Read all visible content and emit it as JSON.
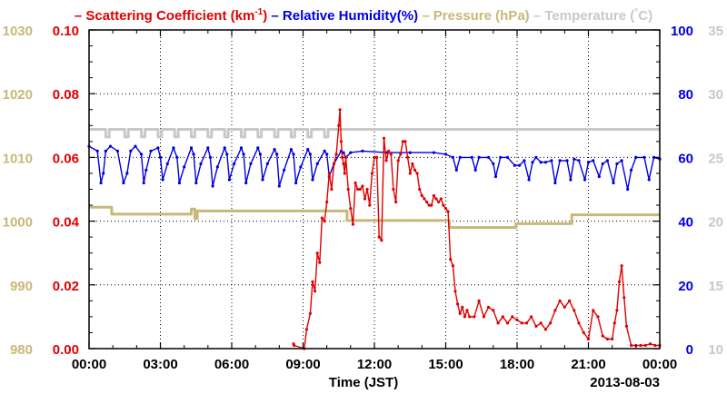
{
  "chart_data": {
    "type": "line",
    "xlabel": "Time (JST)",
    "date_label": "2013-08-03",
    "grid": true,
    "x_ticks": [
      "00:00",
      "03:00",
      "06:00",
      "09:00",
      "12:00",
      "15:00",
      "18:00",
      "21:00",
      "00:00"
    ],
    "x_range_hours": [
      0,
      24
    ],
    "axes": {
      "pressure": {
        "range": [
          980,
          1030
        ],
        "ticks": [
          "980",
          "990",
          "1000",
          "1010",
          "1020",
          "1030"
        ],
        "color": "#c8b878"
      },
      "scattering": {
        "range": [
          0,
          0.1
        ],
        "ticks": [
          "0.00",
          "0.02",
          "0.04",
          "0.06",
          "0.08",
          "0.10"
        ],
        "color": "#e00000"
      },
      "humidity": {
        "range": [
          0,
          100
        ],
        "ticks": [
          "0",
          "20",
          "40",
          "60",
          "80",
          "100"
        ],
        "color": "#0000e0"
      },
      "temperature": {
        "range": [
          10,
          35
        ],
        "ticks": [
          "10",
          "15",
          "20",
          "25",
          "30",
          "35"
        ],
        "color": "#c8c8c8"
      }
    },
    "legend": [
      {
        "key": "scattering",
        "prefix": "– ",
        "text": "Scattering Coefficient (km",
        "sup": "-1",
        "suffix": ")",
        "color": "#e00000"
      },
      {
        "key": "humidity",
        "prefix": " – ",
        "text": "Relative Humidity(%)",
        "sup": "",
        "suffix": "",
        "color": "#0000e0"
      },
      {
        "key": "pressure",
        "prefix": " – ",
        "text": "Pressure (hPa)",
        "sup": "",
        "suffix": "",
        "color": "#c8b878"
      },
      {
        "key": "temperature",
        "prefix": " – ",
        "text": "Temperature (",
        "sup": "°",
        "suffix": "C)",
        "color": "#c8c8c8"
      }
    ],
    "series": [
      {
        "name": "Temperature (°C)",
        "axis": "temperature",
        "color": "#c8c8c8",
        "step": true,
        "x": [
          0,
          0.7,
          0.7,
          0.85,
          0.85,
          1.5,
          1.5,
          1.65,
          1.65,
          2.2,
          2.2,
          2.35,
          2.35,
          2.9,
          2.9,
          3.05,
          3.05,
          3.6,
          3.6,
          3.75,
          3.75,
          4.3,
          4.3,
          4.45,
          4.45,
          5.0,
          5.0,
          5.15,
          5.15,
          5.7,
          5.7,
          5.85,
          5.85,
          6.4,
          6.4,
          6.55,
          6.55,
          7.1,
          7.1,
          7.25,
          7.25,
          7.8,
          7.8,
          7.95,
          7.95,
          8.5,
          8.5,
          8.65,
          8.65,
          9.2,
          9.2,
          9.35,
          9.35,
          9.9,
          9.9,
          10.05,
          10.05,
          10.6,
          10.6,
          24
        ],
        "y": [
          27.2,
          27.2,
          26.6,
          26.6,
          27.2,
          27.2,
          26.6,
          26.6,
          27.2,
          27.2,
          26.6,
          26.6,
          27.2,
          27.2,
          26.6,
          26.6,
          27.2,
          27.2,
          26.6,
          26.6,
          27.2,
          27.2,
          26.6,
          26.6,
          27.2,
          27.2,
          26.6,
          26.6,
          27.2,
          27.2,
          26.6,
          26.6,
          27.2,
          27.2,
          26.6,
          26.6,
          27.2,
          27.2,
          26.6,
          26.6,
          27.2,
          27.2,
          26.6,
          26.6,
          27.2,
          27.2,
          26.6,
          26.6,
          27.2,
          27.2,
          26.6,
          26.6,
          27.2,
          27.2,
          26.6,
          26.6,
          27.2,
          27.2,
          27.2,
          27.2
        ]
      },
      {
        "name": "Pressure (hPa)",
        "axis": "pressure",
        "color": "#c8b878",
        "step": true,
        "x": [
          0,
          0.95,
          0.95,
          4.3,
          4.3,
          4.45,
          4.45,
          4.55,
          4.55,
          4.6,
          4.6,
          10.85,
          10.85,
          15.15,
          15.15,
          17.95,
          17.95,
          20.3,
          20.3,
          24
        ],
        "y": [
          1002.2,
          1002.2,
          1001.1,
          1001.1,
          1001.9,
          1001.9,
          1000.4,
          1000.4,
          1001.6,
          1001.6,
          1001.6,
          1001.6,
          1000.1,
          1000.1,
          999.0,
          999.0,
          999.6,
          999.6,
          1001.0,
          1001.0
        ]
      },
      {
        "name": "Relative Humidity(%)",
        "axis": "humidity",
        "color": "#0000e0",
        "step": false,
        "x": [
          0,
          0.35,
          0.5,
          0.6,
          0.7,
          0.9,
          1.2,
          1.45,
          1.6,
          1.75,
          1.95,
          2.2,
          2.3,
          2.4,
          2.6,
          2.9,
          3.0,
          3.1,
          3.3,
          3.55,
          3.7,
          3.8,
          4.0,
          4.3,
          4.4,
          4.5,
          4.7,
          5.0,
          5.1,
          5.2,
          5.4,
          5.7,
          5.8,
          5.9,
          6.1,
          6.4,
          6.5,
          6.6,
          6.8,
          7.1,
          7.2,
          7.3,
          7.5,
          7.8,
          7.9,
          8.0,
          8.2,
          8.5,
          8.6,
          8.7,
          8.9,
          9.2,
          9.3,
          9.4,
          9.6,
          9.9,
          10.0,
          10.1,
          10.3,
          10.6,
          10.7,
          10.8,
          11.0,
          11.5,
          12.5,
          13.5,
          14.5,
          15.0,
          15.3,
          15.45,
          15.6,
          16.1,
          16.25,
          16.4,
          16.8,
          17.0,
          17.1,
          17.3,
          17.6,
          17.9,
          18.1,
          18.3,
          18.5,
          18.65,
          18.8,
          19.0,
          19.2,
          19.45,
          19.6,
          19.8,
          20.1,
          20.25,
          20.4,
          20.6,
          20.85,
          21.0,
          21.2,
          21.45,
          21.6,
          21.8,
          22.05,
          22.2,
          22.4,
          22.65,
          22.8,
          23.0,
          23.35,
          23.55,
          23.75,
          24
        ],
        "y": [
          63.5,
          62,
          52,
          55,
          62,
          63.5,
          62,
          52,
          55,
          62,
          63.5,
          61,
          52,
          56,
          62,
          63,
          60,
          53,
          58,
          63,
          60,
          52,
          57,
          63,
          61,
          52,
          58,
          63,
          60,
          51,
          57,
          63,
          61,
          53,
          58,
          63,
          61,
          52,
          58,
          63,
          61,
          53,
          58,
          62.5,
          61,
          51,
          56,
          62.5,
          61,
          52,
          57,
          62.5,
          61,
          53,
          58,
          62,
          61,
          54,
          58,
          62,
          61.5,
          60,
          61.5,
          62,
          61.5,
          61.5,
          61.5,
          61,
          60,
          56,
          60,
          60,
          56,
          60,
          60,
          58,
          54,
          60,
          60,
          57.5,
          57.5,
          59,
          53,
          58.5,
          60,
          58.5,
          58.5,
          59,
          52,
          59,
          59,
          53,
          59.5,
          59,
          53,
          58.5,
          59,
          54,
          58,
          59,
          52,
          58,
          59,
          50,
          56,
          60,
          60,
          53,
          60,
          59.5
        ]
      },
      {
        "name": "Scattering Coefficient",
        "axis": "scattering",
        "color": "#e00000",
        "step": false,
        "x": [
          8.6,
          8.62,
          9.05,
          9.15,
          9.3,
          9.4,
          9.5,
          9.6,
          9.7,
          9.8,
          9.9,
          10.0,
          10.1,
          10.2,
          10.3,
          10.4,
          10.5,
          10.55,
          10.6,
          10.65,
          10.7,
          10.75,
          10.8,
          10.9,
          11.0,
          11.1,
          11.2,
          11.3,
          11.4,
          11.5,
          11.6,
          11.7,
          11.8,
          11.9,
          12.0,
          12.1,
          12.2,
          12.3,
          12.4,
          12.5,
          12.6,
          12.7,
          12.8,
          12.9,
          13.0,
          13.1,
          13.2,
          13.3,
          13.4,
          13.5,
          13.6,
          13.7,
          13.8,
          13.9,
          14.0,
          14.1,
          14.2,
          14.3,
          14.4,
          14.5,
          14.6,
          14.7,
          14.8,
          14.9,
          15.0,
          15.1,
          15.2,
          15.3,
          15.4,
          15.5,
          15.6,
          15.7,
          15.8,
          15.9,
          16.0,
          16.2,
          16.4,
          16.6,
          16.8,
          17.0,
          17.2,
          17.4,
          17.6,
          17.8,
          18.0,
          18.2,
          18.4,
          18.6,
          18.8,
          19.0,
          19.2,
          19.4,
          19.6,
          19.8,
          20.0,
          20.2,
          20.4,
          20.6,
          20.8,
          21.0,
          21.2,
          21.4,
          21.6,
          21.8,
          22.0,
          22.1,
          22.2,
          22.3,
          22.4,
          22.5,
          22.6,
          22.8,
          23.0,
          23.2,
          23.4,
          23.6,
          23.8,
          24.0
        ],
        "y": [
          0.0015,
          0.001,
          0.0,
          0.006,
          0.011,
          0.021,
          0.018,
          0.03,
          0.027,
          0.041,
          0.04,
          0.046,
          0.055,
          0.05,
          0.058,
          0.061,
          0.07,
          0.075,
          0.065,
          0.06,
          0.058,
          0.055,
          0.06,
          0.05,
          0.044,
          0.039,
          0.052,
          0.05,
          0.05,
          0.051,
          0.047,
          0.05,
          0.045,
          0.055,
          0.06,
          0.06,
          0.035,
          0.034,
          0.066,
          0.059,
          0.062,
          0.061,
          0.05,
          0.046,
          0.059,
          0.061,
          0.065,
          0.065,
          0.06,
          0.055,
          0.058,
          0.056,
          0.055,
          0.05,
          0.048,
          0.047,
          0.046,
          0.045,
          0.045,
          0.048,
          0.047,
          0.046,
          0.047,
          0.045,
          0.044,
          0.043,
          0.028,
          0.026,
          0.018,
          0.014,
          0.011,
          0.013,
          0.01,
          0.012,
          0.01,
          0.01,
          0.015,
          0.01,
          0.013,
          0.012,
          0.008,
          0.01,
          0.008,
          0.01,
          0.009,
          0.008,
          0.008,
          0.01,
          0.007,
          0.008,
          0.006,
          0.008,
          0.012,
          0.015,
          0.013,
          0.015,
          0.012,
          0.008,
          0.005,
          0.003,
          0.012,
          0.01,
          0.004,
          0.003,
          0.003,
          0.008,
          0.012,
          0.021,
          0.026,
          0.016,
          0.007,
          0.001,
          0.001,
          0.001,
          0.001,
          0.0015,
          0.001,
          0.001
        ]
      }
    ]
  }
}
